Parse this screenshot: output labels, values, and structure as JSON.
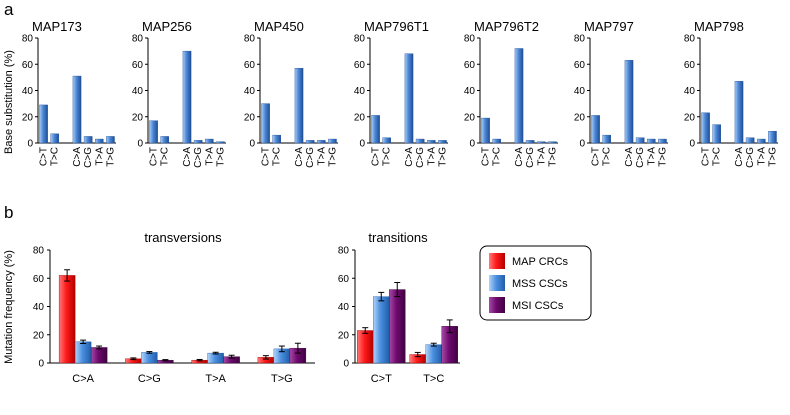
{
  "panel_a": {
    "label": "a",
    "ylabel": "Base substitution (%)",
    "ylim": [
      0,
      80
    ],
    "yticks": [
      0,
      20,
      40,
      60,
      80
    ],
    "categories": [
      "C>T",
      "T>C",
      "C>A",
      "C>G",
      "T>A",
      "T>G"
    ]
  },
  "panel_b": {
    "label": "b",
    "ylabel": "Mutation frequency (%)"
  },
  "legend": [
    {
      "name": "MAP CRCs",
      "color": "#ff1a1a"
    },
    {
      "name": "MSS CSCs",
      "color": "#4a8fe0"
    },
    {
      "name": "MSI CSCs",
      "color": "#6e0a6e"
    }
  ],
  "colors": {
    "bar_blue": "#4a86d6",
    "bar_blue_light": "#a9cbf5",
    "bar_blue_dark": "#1f4f95"
  },
  "chart_data": [
    {
      "type": "bar",
      "title": "MAP173",
      "ylabel": "Base substitution (%)",
      "ylim": [
        0,
        80
      ],
      "categories": [
        "C>T",
        "T>C",
        "C>A",
        "C>G",
        "T>A",
        "T>G"
      ],
      "values": [
        29,
        7,
        51,
        5,
        3,
        5
      ]
    },
    {
      "type": "bar",
      "title": "MAP256",
      "ylim": [
        0,
        80
      ],
      "categories": [
        "C>T",
        "T>C",
        "C>A",
        "C>G",
        "T>A",
        "T>G"
      ],
      "values": [
        17,
        5,
        70,
        2,
        3,
        1
      ]
    },
    {
      "type": "bar",
      "title": "MAP450",
      "ylim": [
        0,
        80
      ],
      "categories": [
        "C>T",
        "T>C",
        "C>A",
        "C>G",
        "T>A",
        "T>G"
      ],
      "values": [
        30,
        6,
        57,
        2,
        2,
        3
      ]
    },
    {
      "type": "bar",
      "title": "MAP796T1",
      "ylim": [
        0,
        80
      ],
      "categories": [
        "C>T",
        "T>C",
        "C>A",
        "C>G",
        "T>A",
        "T>G"
      ],
      "values": [
        21,
        4,
        68,
        3,
        2,
        2
      ]
    },
    {
      "type": "bar",
      "title": "MAP796T2",
      "ylim": [
        0,
        80
      ],
      "categories": [
        "C>T",
        "T>C",
        "C>A",
        "C>G",
        "T>A",
        "T>G"
      ],
      "values": [
        19,
        3,
        72,
        2,
        1,
        1
      ]
    },
    {
      "type": "bar",
      "title": "MAP797",
      "ylim": [
        0,
        80
      ],
      "categories": [
        "C>T",
        "T>C",
        "C>A",
        "C>G",
        "T>A",
        "T>G"
      ],
      "values": [
        21,
        6,
        63,
        4,
        3,
        3
      ]
    },
    {
      "type": "bar",
      "title": "MAP798",
      "ylim": [
        0,
        80
      ],
      "categories": [
        "C>T",
        "T>C",
        "C>A",
        "C>G",
        "T>A",
        "T>G"
      ],
      "values": [
        23,
        14,
        47,
        4,
        3,
        9
      ]
    },
    {
      "type": "bar",
      "title": "transversions",
      "ylabel": "Mutation frequency (%)",
      "ylim": [
        0,
        80
      ],
      "yticks": [
        0,
        20,
        40,
        60,
        80
      ],
      "categories": [
        "C>A",
        "C>G",
        "T>A",
        "T>G"
      ],
      "series": [
        {
          "name": "MAP CRCs",
          "values": [
            62,
            3,
            2,
            4
          ],
          "errors": [
            4,
            0.6,
            0.5,
            1.2
          ]
        },
        {
          "name": "MSS CSCs",
          "values": [
            15,
            7.5,
            7,
            10
          ],
          "errors": [
            1.2,
            0.6,
            0.6,
            2
          ]
        },
        {
          "name": "MSI CSCs",
          "values": [
            11,
            2,
            4.5,
            10.5
          ],
          "errors": [
            1,
            0.4,
            1,
            3.5
          ]
        }
      ]
    },
    {
      "type": "bar",
      "title": "transitions",
      "ylim": [
        0,
        80
      ],
      "yticks": [
        0,
        20,
        40,
        60,
        80
      ],
      "categories": [
        "C>T",
        "T>C"
      ],
      "series": [
        {
          "name": "MAP CRCs",
          "values": [
            23,
            6
          ],
          "errors": [
            2,
            1.5
          ]
        },
        {
          "name": "MSS CSCs",
          "values": [
            47,
            13
          ],
          "errors": [
            3,
            1
          ]
        },
        {
          "name": "MSI CSCs",
          "values": [
            52,
            26
          ],
          "errors": [
            5,
            4.5
          ]
        }
      ]
    }
  ]
}
